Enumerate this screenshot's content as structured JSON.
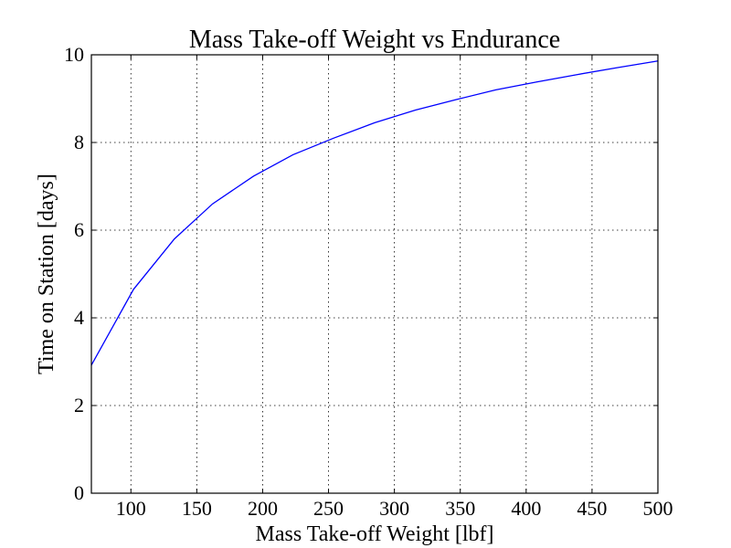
{
  "chart_data": {
    "type": "line",
    "title": "Mass Take-off Weight vs Endurance",
    "xlabel": "Mass Take-off Weight [lbf]",
    "ylabel": "Time on Station [days]",
    "xlim": [
      70,
      500
    ],
    "ylim": [
      0,
      10
    ],
    "x_ticks": [
      100,
      150,
      200,
      250,
      300,
      350,
      400,
      450,
      500
    ],
    "y_ticks": [
      0,
      2,
      4,
      6,
      8,
      10
    ],
    "grid": true,
    "series": [
      {
        "color": "#0000ff",
        "x": [
          70,
          102,
          133,
          162,
          193,
          223,
          254,
          285,
          316,
          347,
          377,
          408,
          439,
          470,
          500
        ],
        "y": [
          2.92,
          4.65,
          5.8,
          6.6,
          7.23,
          7.72,
          8.1,
          8.45,
          8.74,
          8.98,
          9.2,
          9.38,
          9.55,
          9.71,
          9.86
        ]
      }
    ]
  }
}
